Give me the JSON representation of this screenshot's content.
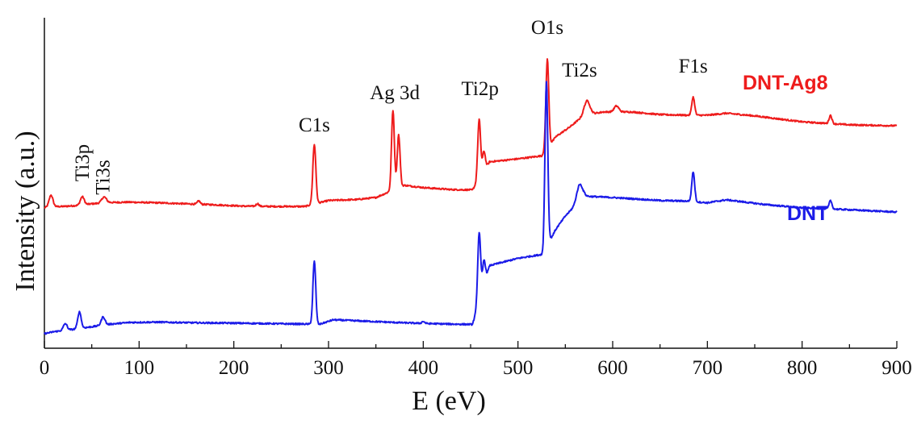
{
  "chart_data": {
    "type": "line",
    "xlabel": "E (eV)",
    "ylabel": "Intensity (a.u.)",
    "xlim": [
      0,
      900
    ],
    "ylim": [
      0,
      100
    ],
    "x_ticks": [
      0,
      100,
      200,
      300,
      400,
      500,
      600,
      700,
      800,
      900
    ],
    "x_tick_labels": [
      "0",
      "100",
      "200",
      "300",
      "400",
      "500",
      "600",
      "700",
      "800",
      "900"
    ],
    "grid": false,
    "peak_labels": [
      {
        "text": "Ti3p",
        "x": 40
      },
      {
        "text": "Ti3s",
        "x": 62
      },
      {
        "text": "C1s",
        "x": 285
      },
      {
        "text": "Ag 3d",
        "x": 370
      },
      {
        "text": "Ti2p",
        "x": 460
      },
      {
        "text": "O1s",
        "x": 531
      },
      {
        "text": "Ti2s",
        "x": 565
      },
      {
        "text": "F1s",
        "x": 685
      }
    ],
    "series": [
      {
        "name": "DNT-Ag8",
        "color": "#ee1c1c",
        "baseline": [
          [
            0,
            42.5
          ],
          [
            5,
            42.8
          ],
          [
            20,
            42.9
          ],
          [
            35,
            43.2
          ],
          [
            50,
            43.7
          ],
          [
            70,
            44.1
          ],
          [
            90,
            44.2
          ],
          [
            120,
            44.0
          ],
          [
            150,
            43.7
          ],
          [
            180,
            43.4
          ],
          [
            210,
            43.0
          ],
          [
            240,
            42.9
          ],
          [
            275,
            42.9
          ],
          [
            300,
            44.7
          ],
          [
            330,
            45.0
          ],
          [
            350,
            45.6
          ],
          [
            380,
            49.3
          ],
          [
            400,
            48.6
          ],
          [
            430,
            48.0
          ],
          [
            452,
            47.9
          ],
          [
            470,
            56.4
          ],
          [
            500,
            57.3
          ],
          [
            525,
            58.2
          ],
          [
            540,
            64.0
          ],
          [
            555,
            67.0
          ],
          [
            570,
            70.5
          ],
          [
            590,
            71.5
          ],
          [
            620,
            71.5
          ],
          [
            650,
            70.7
          ],
          [
            680,
            70.5
          ],
          [
            700,
            70.5
          ],
          [
            720,
            71.1
          ],
          [
            750,
            70.3
          ],
          [
            800,
            68.5
          ],
          [
            850,
            67.6
          ],
          [
            900,
            67.3
          ]
        ],
        "peaks": [
          {
            "x": 7,
            "h": 3.5,
            "w": 2
          },
          {
            "x": 40,
            "h": 2.5,
            "w": 2
          },
          {
            "x": 63,
            "h": 1.8,
            "w": 2.5
          },
          {
            "x": 163,
            "h": 1.0,
            "w": 1.5
          },
          {
            "x": 225,
            "h": 0.8,
            "w": 1.5
          },
          {
            "x": 285,
            "h": 18.0,
            "w": 1.6
          },
          {
            "x": 368,
            "h": 24.0,
            "w": 1.5
          },
          {
            "x": 374,
            "h": 16.0,
            "w": 1.5
          },
          {
            "x": 459,
            "h": 18.0,
            "w": 1.5
          },
          {
            "x": 464,
            "h": 6.0,
            "w": 1.5
          },
          {
            "x": 531,
            "h": 27.0,
            "w": 1.5
          },
          {
            "x": 573,
            "h": 4.2,
            "w": 3
          },
          {
            "x": 604,
            "h": 1.8,
            "w": 2.5
          },
          {
            "x": 685,
            "h": 5.5,
            "w": 1.5
          },
          {
            "x": 830,
            "h": 2.5,
            "w": 1.5
          }
        ]
      },
      {
        "name": "DNT",
        "color": "#1b1be8",
        "baseline": [
          [
            0,
            4.4
          ],
          [
            10,
            5.0
          ],
          [
            30,
            5.7
          ],
          [
            50,
            6.5
          ],
          [
            70,
            7.3
          ],
          [
            90,
            7.8
          ],
          [
            120,
            7.9
          ],
          [
            160,
            7.7
          ],
          [
            200,
            7.6
          ],
          [
            250,
            7.4
          ],
          [
            278,
            7.3
          ],
          [
            290,
            7.2
          ],
          [
            305,
            8.6
          ],
          [
            330,
            8.3
          ],
          [
            370,
            7.8
          ],
          [
            400,
            7.5
          ],
          [
            430,
            7.3
          ],
          [
            452,
            7.2
          ],
          [
            470,
            25.0
          ],
          [
            500,
            27.2
          ],
          [
            526,
            28.4
          ],
          [
            540,
            36.0
          ],
          [
            550,
            40.0
          ],
          [
            570,
            46.0
          ],
          [
            600,
            45.6
          ],
          [
            650,
            44.7
          ],
          [
            680,
            44.5
          ],
          [
            700,
            44.0
          ],
          [
            720,
            44.9
          ],
          [
            760,
            43.5
          ],
          [
            800,
            42.5
          ],
          [
            850,
            41.9
          ],
          [
            900,
            41.2
          ]
        ],
        "peaks": [
          {
            "x": 22,
            "h": 2.0,
            "w": 2
          },
          {
            "x": 37,
            "h": 5.0,
            "w": 1.8
          },
          {
            "x": 62,
            "h": 2.5,
            "w": 2
          },
          {
            "x": 285,
            "h": 19.0,
            "w": 1.5
          },
          {
            "x": 400,
            "h": 0.6,
            "w": 1.5
          },
          {
            "x": 459,
            "h": 21.0,
            "w": 1.5
          },
          {
            "x": 464,
            "h": 7.5,
            "w": 1.5
          },
          {
            "x": 530,
            "h": 50.0,
            "w": 1.5
          },
          {
            "x": 565,
            "h": 5.0,
            "w": 3
          },
          {
            "x": 685,
            "h": 9.0,
            "w": 1.5
          },
          {
            "x": 830,
            "h": 2.5,
            "w": 1.5
          }
        ]
      }
    ]
  }
}
